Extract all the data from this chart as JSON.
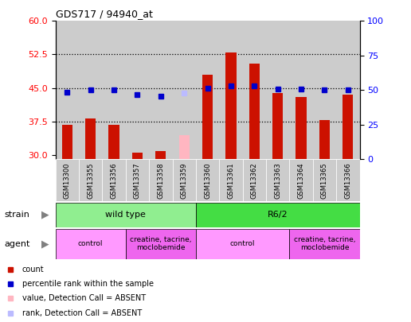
{
  "title": "GDS717 / 94940_at",
  "samples": [
    "GSM13300",
    "GSM13355",
    "GSM13356",
    "GSM13357",
    "GSM13358",
    "GSM13359",
    "GSM13360",
    "GSM13361",
    "GSM13362",
    "GSM13363",
    "GSM13364",
    "GSM13365",
    "GSM13366"
  ],
  "count_values": [
    36.8,
    38.2,
    36.8,
    30.5,
    30.8,
    null,
    48.0,
    53.0,
    50.5,
    43.8,
    43.0,
    37.8,
    43.5
  ],
  "absent_count_values": [
    null,
    null,
    null,
    null,
    null,
    34.5,
    null,
    null,
    null,
    null,
    null,
    null,
    null
  ],
  "rank_values": [
    44.0,
    44.5,
    44.5,
    43.5,
    43.2,
    null,
    45.0,
    45.5,
    45.5,
    44.8,
    44.8,
    44.5,
    44.5
  ],
  "absent_rank_values": [
    null,
    null,
    null,
    null,
    null,
    43.8,
    null,
    null,
    null,
    null,
    null,
    null,
    null
  ],
  "ylim_left": [
    29,
    60
  ],
  "ylim_right": [
    0,
    100
  ],
  "yticks_left": [
    30,
    37.5,
    45,
    52.5,
    60
  ],
  "yticks_right": [
    0,
    25,
    50,
    75,
    100
  ],
  "hlines": [
    37.5,
    45.0,
    52.5
  ],
  "strain_groups": [
    {
      "label": "wild type",
      "start": 0,
      "end": 6,
      "color": "#90EE90"
    },
    {
      "label": "R6/2",
      "start": 6,
      "end": 13,
      "color": "#44DD44"
    }
  ],
  "agent_groups": [
    {
      "label": "control",
      "start": 0,
      "end": 3,
      "color": "#FF99FF"
    },
    {
      "label": "creatine, tacrine,\nmoclobemide",
      "start": 3,
      "end": 6,
      "color": "#EE66EE"
    },
    {
      "label": "control",
      "start": 6,
      "end": 10,
      "color": "#FF99FF"
    },
    {
      "label": "creatine, tacrine,\nmoclobemide",
      "start": 10,
      "end": 13,
      "color": "#EE66EE"
    }
  ],
  "bar_color": "#CC1100",
  "absent_bar_color": "#FFB6C1",
  "rank_color": "#0000CC",
  "absent_rank_color": "#BBBBFF",
  "col_bg_color": "#CCCCCC",
  "plot_bg_color": "#FFFFFF",
  "legend_items": [
    {
      "color": "#CC1100",
      "label": "count"
    },
    {
      "color": "#0000CC",
      "label": "percentile rank within the sample"
    },
    {
      "color": "#FFB6C1",
      "label": "value, Detection Call = ABSENT"
    },
    {
      "color": "#BBBBFF",
      "label": "rank, Detection Call = ABSENT"
    }
  ]
}
